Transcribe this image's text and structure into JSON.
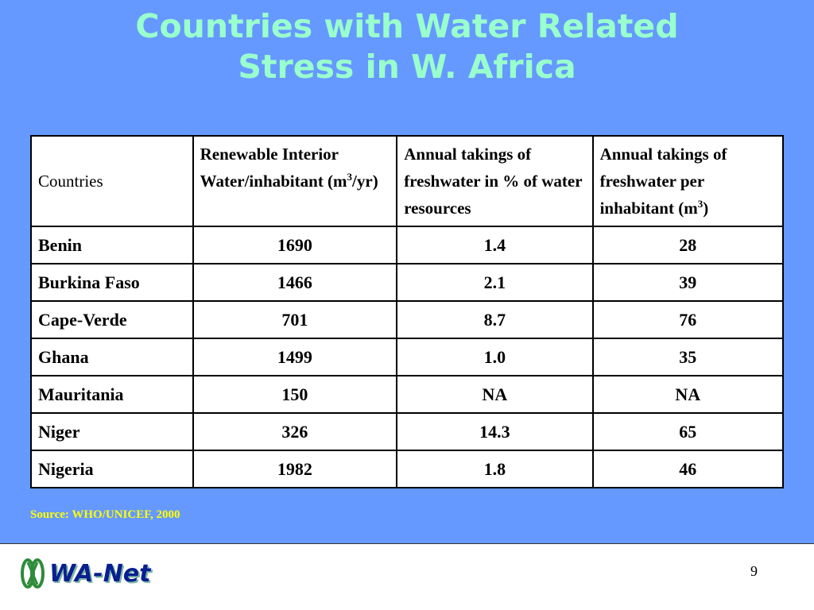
{
  "slide": {
    "title_line1": "Countries with Water Related",
    "title_line2": "Stress in W. Africa",
    "source": "Source: WHO/UNICEF, 2000",
    "page_number": "9",
    "logo_text": "WA-Net",
    "logo_icon": "double-loop-emblem-icon"
  },
  "table": {
    "headers": {
      "col1": "Countries",
      "col2_text": "Renewable Interior Water/inhabitant (m",
      "col2_sup": "3",
      "col2_tail": "/yr)",
      "col3": "Annual takings of freshwater in % of water resources",
      "col4_text": "Annual takings of freshwater per inhabitant (m",
      "col4_sup": "3",
      "col4_tail": ")"
    },
    "rows": [
      {
        "country": "Benin",
        "renewable": "1690",
        "takings_pct": "1.4",
        "takings_per_inhabitant": "28"
      },
      {
        "country": "Burkina Faso",
        "renewable": "1466",
        "takings_pct": "2.1",
        "takings_per_inhabitant": "39"
      },
      {
        "country": "Cape-Verde",
        "renewable": "701",
        "takings_pct": "8.7",
        "takings_per_inhabitant": "76"
      },
      {
        "country": "Ghana",
        "renewable": "1499",
        "takings_pct": "1.0",
        "takings_per_inhabitant": "35"
      },
      {
        "country": "Mauritania",
        "renewable": "150",
        "takings_pct": "NA",
        "takings_per_inhabitant": "NA"
      },
      {
        "country": "Niger",
        "renewable": "326",
        "takings_pct": "14.3",
        "takings_per_inhabitant": "65"
      },
      {
        "country": "Nigeria",
        "renewable": "1982",
        "takings_pct": "1.8",
        "takings_per_inhabitant": "46"
      }
    ]
  },
  "colors": {
    "background_panel": "#6699ff",
    "title": "#99ffcc",
    "source": "#ffff00",
    "logo_text": "#0a1f8f",
    "logo_emblem": "#2e8b3a"
  }
}
